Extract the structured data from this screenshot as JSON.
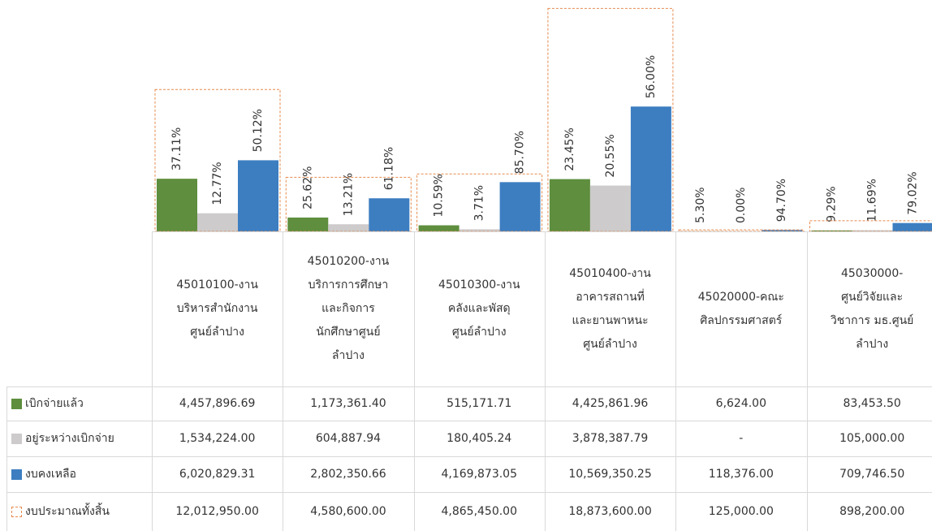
{
  "chart_data": {
    "type": "bar",
    "categories": [
      "45010100-งาน\nบริหารสำนักงาน\nศูนย์ลำปาง",
      "45010200-งาน\nบริการการศึกษา\nและกิจการ\nนักศึกษาศูนย์\nลำปาง",
      "45010300-งาน\nคลังและพัสดุ\nศูนย์ลำปาง",
      "45010400-งาน\nอาคารสถานที่\nและยานพาหนะ\nศูนย์ลำปาง",
      "45020000-คณะ\nศิลปกรรมศาสตร์",
      "45030000-\nศูนย์วิจัยและ\nวิชาการ มธ.ศูนย์\nลำปาง"
    ],
    "ylim": [
      0,
      20000000
    ],
    "series": [
      {
        "name": "เบิกจ่ายแล้ว",
        "color": "#5e8e3e",
        "style": "bar",
        "values": [
          4457896.69,
          1173361.4,
          515171.71,
          4425861.96,
          6624.0,
          83453.5
        ],
        "value_labels": [
          "4,457,896.69",
          "1,173,361.40",
          "515,171.71",
          "4,425,861.96",
          "6,624.00",
          "83,453.50"
        ],
        "percent_labels": [
          "37.11%",
          "25.62%",
          "10.59%",
          "23.45%",
          "5.30%",
          "9.29%"
        ]
      },
      {
        "name": "อยู่ระหว่างเบิกจ่าย",
        "color": "#cdcbcb",
        "style": "bar",
        "values": [
          1534224.0,
          604887.94,
          180405.24,
          3878387.79,
          0,
          105000.0
        ],
        "value_labels": [
          "1,534,224.00",
          "604,887.94",
          "180,405.24",
          "3,878,387.79",
          "-",
          "105,000.00"
        ],
        "percent_labels": [
          "12.77%",
          "13.21%",
          "3.71%",
          "20.55%",
          "0.00%",
          "11.69%"
        ]
      },
      {
        "name": "งบคงเหลือ",
        "color": "#3d7ec1",
        "style": "bar",
        "values": [
          6020829.31,
          2802350.66,
          4169873.05,
          10569350.25,
          118376.0,
          709746.5
        ],
        "value_labels": [
          "6,020,829.31",
          "2,802,350.66",
          "4,169,873.05",
          "10,569,350.25",
          "118,376.00",
          "709,746.50"
        ],
        "percent_labels": [
          "50.12%",
          "61.18%",
          "85.70%",
          "56.00%",
          "94.70%",
          "79.02%"
        ]
      },
      {
        "name": "งบประมาณทั้งสิ้น",
        "color": "#e58a4e",
        "style": "dashed-box",
        "values": [
          12012950.0,
          4580600.0,
          4865450.0,
          18873600.0,
          125000.0,
          898200.0
        ],
        "value_labels": [
          "12,012,950.00",
          "4,580,600.00",
          "4,865,450.00",
          "18,873,600.00",
          "125,000.00",
          "898,200.00"
        ]
      }
    ]
  }
}
